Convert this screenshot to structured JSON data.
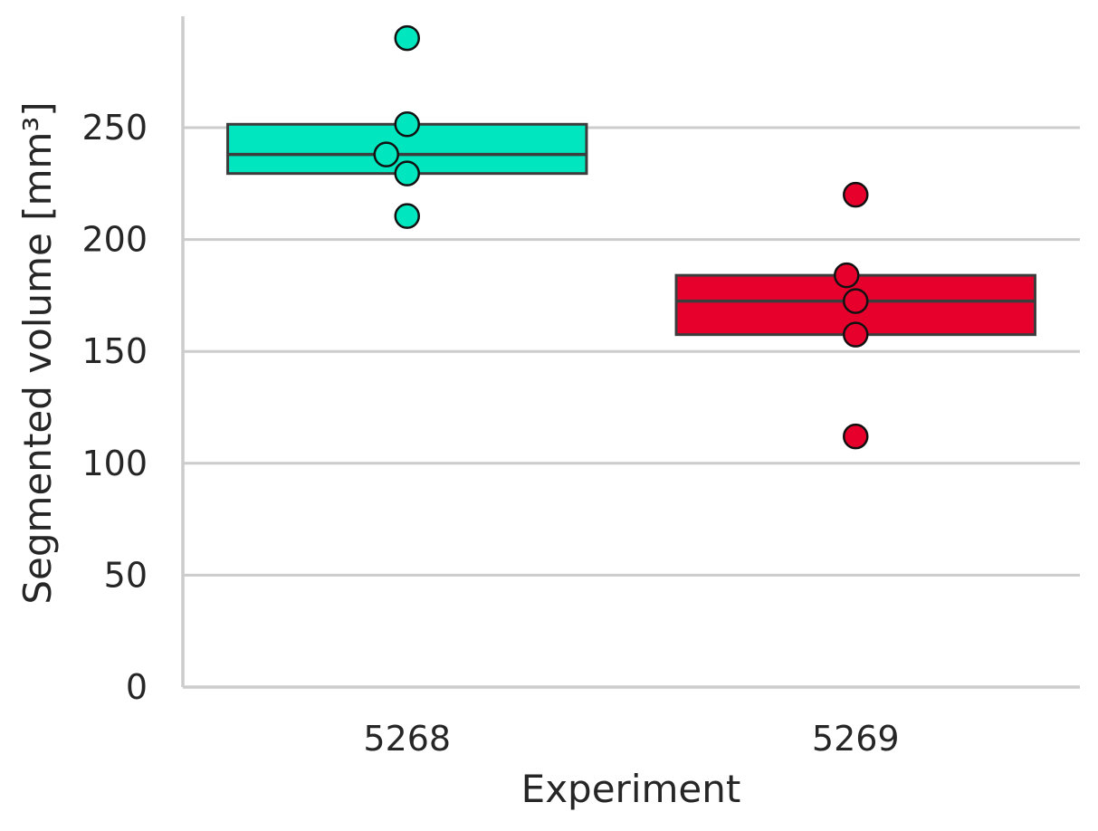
{
  "chart_data": {
    "type": "box",
    "xlabel": "Experiment",
    "ylabel": "Segmented volume [mm³]",
    "categories": [
      "5268",
      "5269"
    ],
    "ylim": [
      0,
      300
    ],
    "yticks": [
      0,
      50,
      100,
      150,
      200,
      250
    ],
    "grid": "horizontal",
    "boxes": [
      {
        "category": "5268",
        "q1": 229.5,
        "median": 238,
        "q3": 251.5,
        "color": "#00e6be",
        "points": [
          290,
          251.5,
          238,
          229.5,
          210.5
        ]
      },
      {
        "category": "5269",
        "q1": 157.5,
        "median": 172.5,
        "q3": 184,
        "color": "#e8002d",
        "points": [
          220,
          184,
          172.5,
          157.5,
          112
        ]
      }
    ]
  }
}
